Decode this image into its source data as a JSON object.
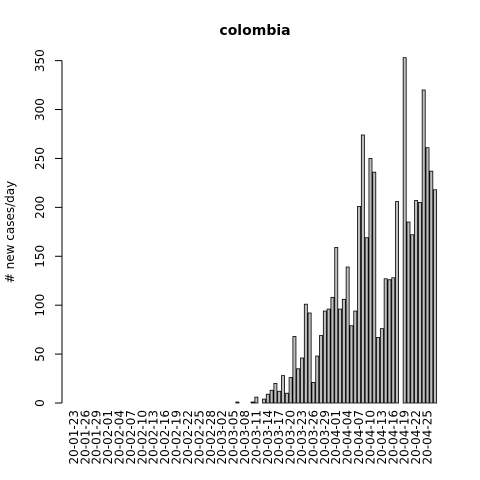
{
  "chart_data": {
    "type": "bar",
    "title": "colombia",
    "y_label": "# new cases/day",
    "categories": [
      "20-01-23",
      null,
      null,
      "20-01-26",
      null,
      null,
      "20-01-29",
      null,
      null,
      "20-02-01",
      null,
      null,
      "20-02-04",
      null,
      null,
      "20-02-07",
      null,
      null,
      "20-02-10",
      null,
      null,
      "20-02-13",
      null,
      null,
      "20-02-16",
      null,
      null,
      "20-02-19",
      null,
      null,
      "20-02-22",
      null,
      null,
      "20-02-25",
      null,
      null,
      "20-02-28",
      null,
      null,
      "20-03-02",
      null,
      null,
      "20-03-05",
      null,
      null,
      "20-03-08",
      null,
      null,
      "20-03-11",
      null,
      null,
      "20-03-14",
      null,
      null,
      "20-03-17",
      null,
      null,
      "20-03-20",
      null,
      null,
      "20-03-23",
      null,
      null,
      "20-03-26",
      null,
      null,
      "20-03-29",
      null,
      null,
      "20-04-01",
      null,
      null,
      "20-04-04",
      null,
      null,
      "20-04-07",
      null,
      null,
      "20-04-10",
      null,
      null,
      "20-04-13",
      null,
      null,
      "20-04-16",
      null,
      null,
      "20-04-19",
      null,
      null,
      "20-04-22",
      null,
      null,
      "20-04-25",
      null,
      null
    ],
    "values": [
      0,
      0,
      0,
      0,
      0,
      0,
      0,
      0,
      0,
      0,
      0,
      0,
      0,
      0,
      0,
      0,
      0,
      0,
      0,
      0,
      0,
      0,
      0,
      0,
      0,
      0,
      0,
      0,
      0,
      0,
      0,
      0,
      0,
      0,
      0,
      0,
      0,
      0,
      0,
      0,
      0,
      0,
      0,
      1,
      0,
      0,
      0,
      1,
      6,
      0,
      4,
      9,
      13,
      20,
      12,
      28,
      10,
      26,
      68,
      35,
      46,
      101,
      92,
      21,
      48,
      69,
      94,
      96,
      108,
      159,
      96,
      106,
      139,
      79,
      94,
      201,
      274,
      169,
      250,
      236,
      67,
      76,
      127,
      126,
      128,
      206,
      0,
      353,
      185,
      172,
      207,
      205,
      320,
      261,
      237,
      218
    ],
    "color": "#bebebe",
    "ylim": [
      0,
      367
    ],
    "yticks": [
      0,
      50,
      100,
      150,
      200,
      250,
      300,
      350
    ]
  }
}
